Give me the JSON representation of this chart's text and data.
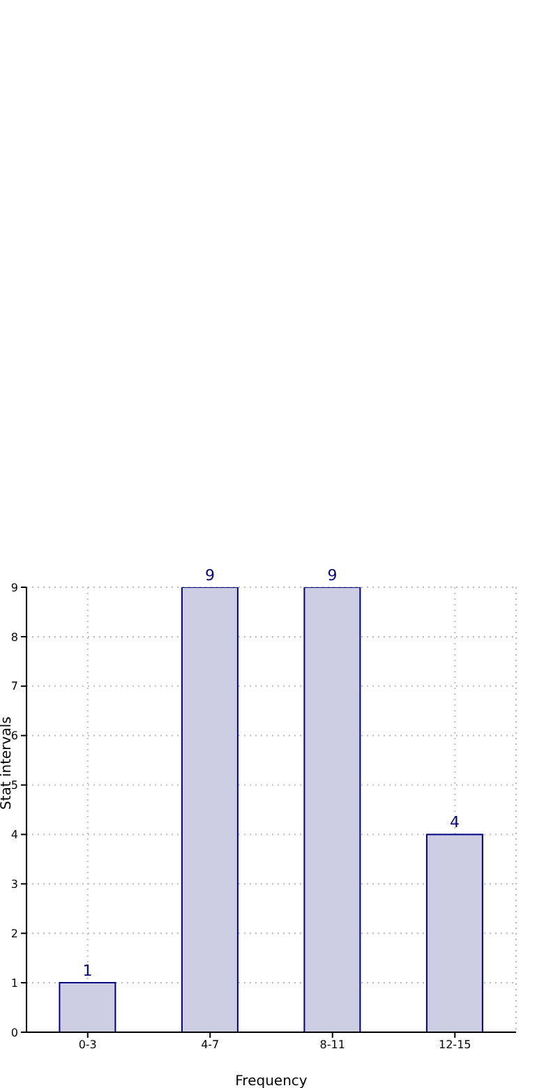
{
  "chart_data": {
    "type": "bar",
    "xlabel": "Frequency",
    "ylabel": "Stat intervals",
    "categories": [
      "0-3",
      "4-7",
      "8-11",
      "12-15"
    ],
    "values": [
      1,
      9,
      9,
      4
    ],
    "color": "#cdcde3",
    "ylim": [
      0,
      9
    ],
    "yticks": [
      0,
      1,
      2,
      3,
      4,
      5,
      6,
      7,
      8,
      9
    ],
    "grid": true,
    "data_labels": true
  }
}
